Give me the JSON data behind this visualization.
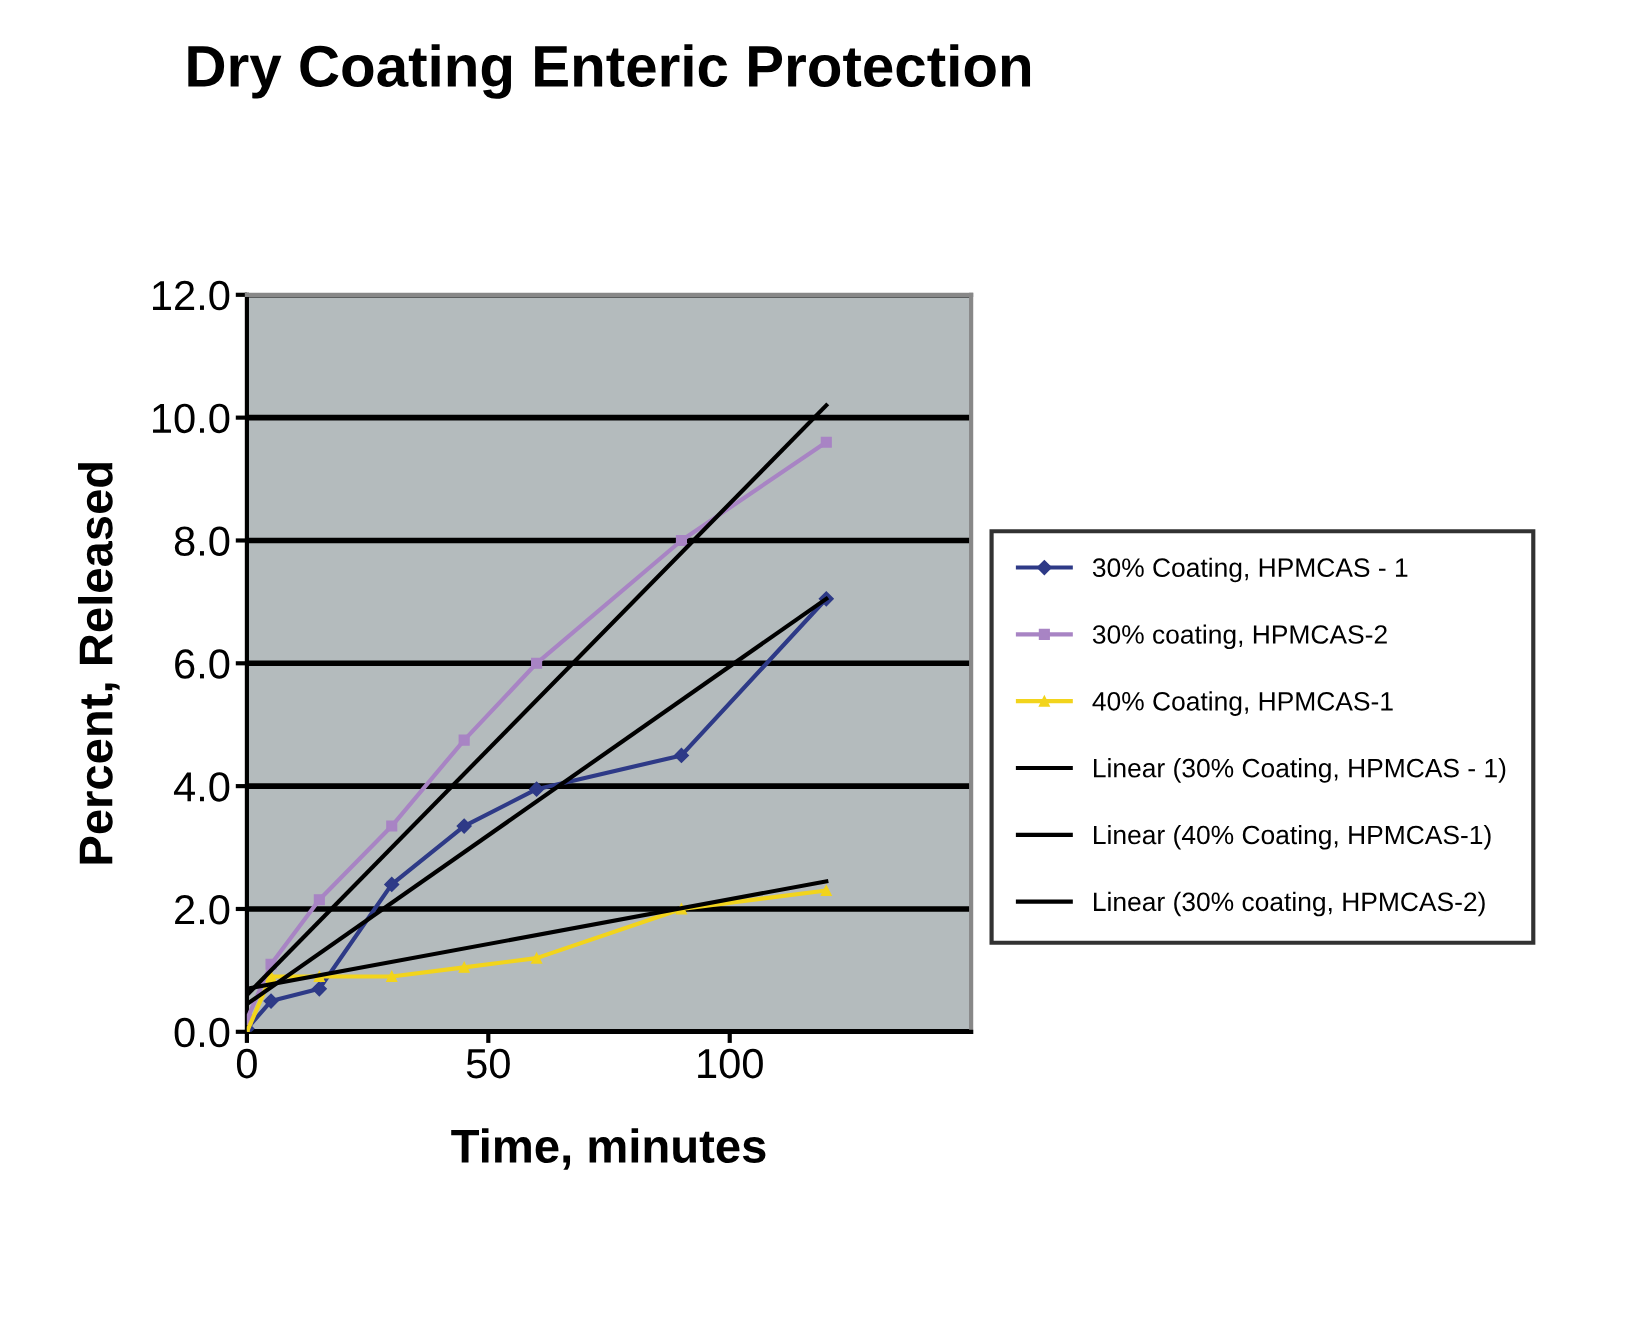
{
  "chart_data": {
    "type": "line",
    "title": "Dry Coating Enteric Protection",
    "xlabel": "Time, minutes",
    "ylabel": "Percent, Released",
    "xlim": [
      0,
      150
    ],
    "xticks": [
      0,
      50,
      100
    ],
    "ylim": [
      0,
      12
    ],
    "yticks": [
      {
        "value": 0,
        "label": "0.0"
      },
      {
        "value": 2,
        "label": "2.0"
      },
      {
        "value": 4,
        "label": "4.0"
      },
      {
        "value": 6,
        "label": "6.0"
      },
      {
        "value": 8,
        "label": "8.0"
      },
      {
        "value": 10,
        "label": "10.0"
      },
      {
        "value": 12,
        "label": "12.0"
      }
    ],
    "grid": "y",
    "legend": "right",
    "series": [
      {
        "name": "30% Coating, HPMCAS - 1",
        "color": "#2e3a87",
        "marker": "diamond",
        "x": [
          0,
          5,
          15,
          30,
          45,
          60,
          90,
          120
        ],
        "values": [
          0.05,
          0.5,
          0.7,
          2.4,
          3.35,
          3.95,
          4.5,
          7.05
        ]
      },
      {
        "name": "30% coating, HPMCAS-2",
        "color": "#a884c4",
        "marker": "square",
        "x": [
          0,
          5,
          15,
          30,
          45,
          60,
          90,
          120
        ],
        "values": [
          0.2,
          1.1,
          2.15,
          3.35,
          4.75,
          6.0,
          8.0,
          9.6
        ]
      },
      {
        "name": "40% Coating, HPMCAS-1",
        "color": "#f2d41c",
        "marker": "triangle",
        "x": [
          0,
          5,
          15,
          30,
          45,
          60,
          90,
          120
        ],
        "values": [
          0.0,
          0.9,
          0.9,
          0.9,
          1.05,
          1.2,
          2.0,
          2.3
        ]
      },
      {
        "name": "Linear (30% Coating, HPMCAS - 1)",
        "color": "#000000",
        "marker": "none",
        "x": [
          0,
          120
        ],
        "values": [
          0.45,
          7.05
        ]
      },
      {
        "name": "Linear (40% Coating, HPMCAS-1)",
        "color": "#000000",
        "marker": "none",
        "x": [
          0,
          120
        ],
        "values": [
          0.7,
          2.45
        ]
      },
      {
        "name": "Linear (30% coating, HPMCAS-2)",
        "color": "#000000",
        "marker": "none",
        "x": [
          0,
          120
        ],
        "values": [
          0.6,
          10.2
        ]
      }
    ]
  }
}
